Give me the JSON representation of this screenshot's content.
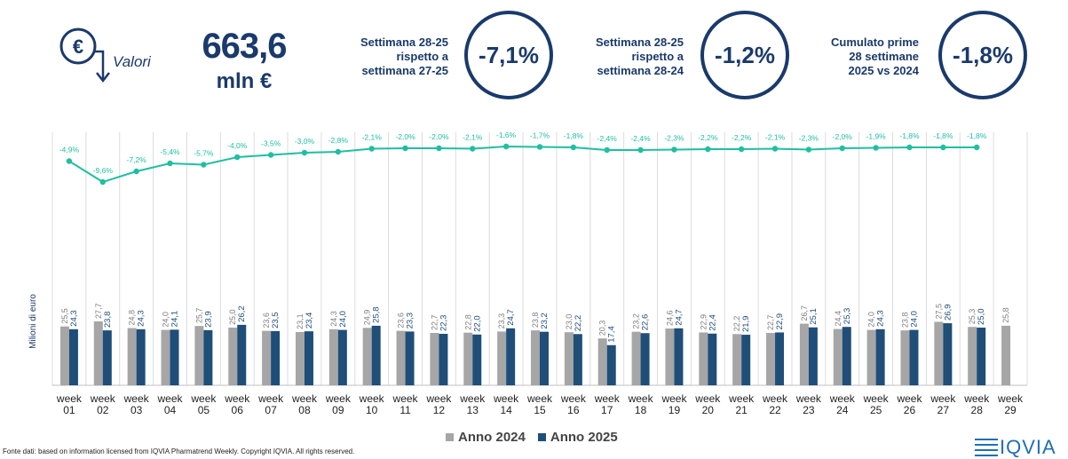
{
  "header": {
    "currency_symbol": "€",
    "valori_label": "Valori",
    "total_value": "663,6",
    "total_unit": "mln €"
  },
  "kpis": [
    {
      "label": "Settimana 28-25\nrispetto a\nsettimana 27-25",
      "value": "-7,1%"
    },
    {
      "label": "Settimana 28-25\nrispetto a\nsettimana 28-24",
      "value": "-1,2%"
    },
    {
      "label": "Cumulato prime\n28 settimane\n2025 vs 2024",
      "value": "-1,8%"
    }
  ],
  "colors": {
    "accent": "#1a3a6b",
    "series_2024": "#a6a6a6",
    "series_2025": "#1f4e79",
    "trend_line": "#1fbfa0",
    "grid": "#dcdcdc"
  },
  "chart_data": {
    "type": "bar",
    "ylabel": "Milioni di euro",
    "categories": [
      "week\n01",
      "week\n02",
      "week\n03",
      "week\n04",
      "week\n05",
      "week\n06",
      "week\n07",
      "week\n08",
      "week\n09",
      "week\n10",
      "week\n11",
      "week\n12",
      "week\n13",
      "week\n14",
      "week\n15",
      "week\n16",
      "week\n17",
      "week\n18",
      "week\n19",
      "week\n20",
      "week\n21",
      "week\n22",
      "week\n23",
      "week\n24",
      "week\n25",
      "week\n26",
      "week\n27",
      "week\n28",
      "week\n29"
    ],
    "series": [
      {
        "name": "Anno 2024",
        "values": [
          25.5,
          27.7,
          24.8,
          24.0,
          25.7,
          25.0,
          23.6,
          23.1,
          24.3,
          24.9,
          23.6,
          22.7,
          22.8,
          23.3,
          23.8,
          23.0,
          20.3,
          23.2,
          24.6,
          22.9,
          22.2,
          22.7,
          26.7,
          24.4,
          24.0,
          23.8,
          27.5,
          25.3,
          25.8
        ],
        "labels": [
          "25,5",
          "27,7",
          "24,8",
          "24,0",
          "25,7",
          "25,0",
          "23,6",
          "23,1",
          "24,3",
          "24,9",
          "23,6",
          "22,7",
          "22,8",
          "23,3",
          "23,8",
          "23,0",
          "20,3",
          "23,2",
          "24,6",
          "22,9",
          "22,2",
          "22,7",
          "26,7",
          "24,4",
          "24,0",
          "23,8",
          "27,5",
          "25,3",
          "25,8"
        ]
      },
      {
        "name": "Anno 2025",
        "values": [
          24.3,
          23.8,
          24.3,
          24.1,
          23.9,
          26.2,
          23.5,
          23.4,
          24.0,
          25.8,
          23.3,
          22.3,
          22.0,
          24.7,
          23.2,
          22.2,
          17.4,
          22.6,
          24.7,
          22.4,
          21.9,
          22.9,
          25.1,
          25.3,
          24.3,
          24.0,
          26.9,
          25.0,
          null
        ],
        "labels": [
          "24,3",
          "23,8",
          "24,3",
          "24,1",
          "23,9",
          "26,2",
          "23,5",
          "23,4",
          "24,0",
          "25,8",
          "23,3",
          "22,3",
          "22,0",
          "24,7",
          "23,2",
          "22,2",
          "17,4",
          "22,6",
          "24,7",
          "22,4",
          "21,9",
          "22,9",
          "25,1",
          "25,3",
          "24,3",
          "24,0",
          "26,9",
          "25,0",
          ""
        ]
      }
    ],
    "cumulative_change": {
      "values": [
        -4.9,
        -9.6,
        -7.2,
        -5.4,
        -5.7,
        -4.0,
        -3.5,
        -3.0,
        -2.8,
        -2.1,
        -2.0,
        -2.0,
        -2.1,
        -1.6,
        -1.7,
        -1.8,
        -2.4,
        -2.4,
        -2.3,
        -2.2,
        -2.2,
        -2.1,
        -2.3,
        -2.0,
        -1.9,
        -1.8,
        -1.8,
        -1.8
      ],
      "labels": [
        "-4,9%",
        "-9,6%",
        "-7,2%",
        "-5,4%",
        "-5,7%",
        "-4,0%",
        "-3,5%",
        "-3,0%",
        "-2,8%",
        "-2,1%",
        "-2,0%",
        "-2,0%",
        "-2,1%",
        "-1,6%",
        "-1,7%",
        "-1,8%",
        "-2,4%",
        "-2,4%",
        "-2,3%",
        "-2,2%",
        "-2,2%",
        "-2,1%",
        "-2,3%",
        "-2,0%",
        "-1,9%",
        "-1,8%",
        "-1,8%",
        "-1,8%"
      ]
    },
    "legend_position": "bottom",
    "grid": true
  },
  "footer": {
    "source_note": "Fonte dati: based on information licensed from IQVIA Pharmatrend Weekly. Copyright IQVIA. All rights reserved.",
    "brand": "IQVIA"
  }
}
